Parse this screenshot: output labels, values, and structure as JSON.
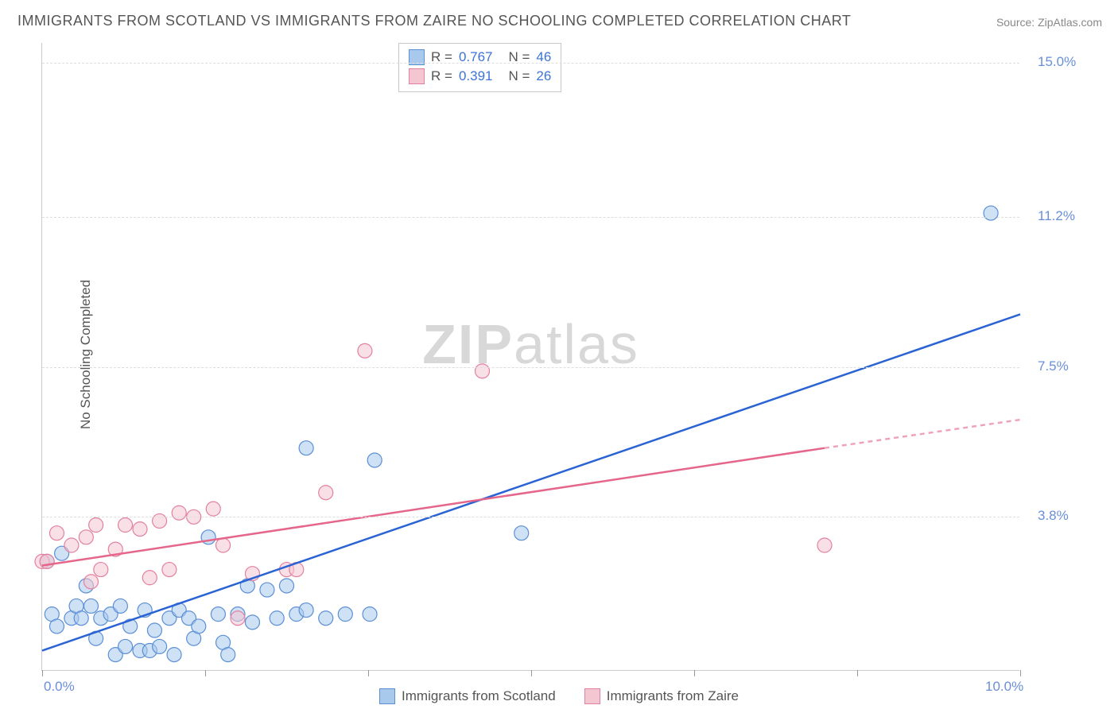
{
  "title": "IMMIGRANTS FROM SCOTLAND VS IMMIGRANTS FROM ZAIRE NO SCHOOLING COMPLETED CORRELATION CHART",
  "source": "Source: ZipAtlas.com",
  "ylabel": "No Schooling Completed",
  "watermark_a": "ZIP",
  "watermark_b": "atlas",
  "chart": {
    "type": "scatter",
    "xlim": [
      0,
      10
    ],
    "ylim": [
      0,
      15.5
    ],
    "x_ticks": [
      0.0,
      1.67,
      3.33,
      5.0,
      6.67,
      8.33,
      10.0
    ],
    "x_tick_labels": {
      "0": "0.0%",
      "6": "10.0%"
    },
    "y_gridlines": [
      3.8,
      7.5,
      11.2,
      15.0
    ],
    "y_tick_labels": [
      "3.8%",
      "7.5%",
      "11.2%",
      "15.0%"
    ],
    "grid_color": "#dddddd",
    "axis_color": "#cccccc",
    "background_color": "#ffffff",
    "tick_label_color": "#6a8fd8",
    "series": [
      {
        "name": "Immigrants from Scotland",
        "color_fill": "#a8c8ec",
        "color_stroke": "#5b8fd6",
        "marker_radius": 9,
        "fill_opacity": 0.55,
        "R": 0.767,
        "N": 46,
        "regression": {
          "x1": 0.0,
          "y1": 0.5,
          "x2": 10.0,
          "y2": 8.8,
          "color": "#2a63d4",
          "width": 2.5
        },
        "points": [
          [
            0.05,
            2.7
          ],
          [
            0.1,
            1.4
          ],
          [
            0.15,
            1.1
          ],
          [
            0.2,
            2.9
          ],
          [
            0.3,
            1.3
          ],
          [
            0.35,
            1.6
          ],
          [
            0.4,
            1.3
          ],
          [
            0.45,
            2.1
          ],
          [
            0.5,
            1.6
          ],
          [
            0.55,
            0.8
          ],
          [
            0.6,
            1.3
          ],
          [
            0.7,
            1.4
          ],
          [
            0.75,
            0.4
          ],
          [
            0.8,
            1.6
          ],
          [
            0.85,
            0.6
          ],
          [
            0.9,
            1.1
          ],
          [
            1.0,
            0.5
          ],
          [
            1.05,
            1.5
          ],
          [
            1.1,
            0.5
          ],
          [
            1.15,
            1.0
          ],
          [
            1.2,
            0.6
          ],
          [
            1.3,
            1.3
          ],
          [
            1.35,
            0.4
          ],
          [
            1.4,
            1.5
          ],
          [
            1.5,
            1.3
          ],
          [
            1.55,
            0.8
          ],
          [
            1.6,
            1.1
          ],
          [
            1.7,
            3.3
          ],
          [
            1.8,
            1.4
          ],
          [
            1.85,
            0.7
          ],
          [
            1.9,
            0.4
          ],
          [
            2.0,
            1.4
          ],
          [
            2.1,
            2.1
          ],
          [
            2.15,
            1.2
          ],
          [
            2.3,
            2.0
          ],
          [
            2.4,
            1.3
          ],
          [
            2.5,
            2.1
          ],
          [
            2.6,
            1.4
          ],
          [
            2.7,
            1.5
          ],
          [
            2.7,
            5.5
          ],
          [
            2.9,
            1.3
          ],
          [
            3.1,
            1.4
          ],
          [
            3.35,
            1.4
          ],
          [
            3.4,
            5.2
          ],
          [
            4.9,
            3.4
          ],
          [
            9.7,
            11.3
          ]
        ]
      },
      {
        "name": "Immigrants from Zaire",
        "color_fill": "#f4c6d2",
        "color_stroke": "#e3809f",
        "marker_radius": 9,
        "fill_opacity": 0.55,
        "R": 0.391,
        "N": 26,
        "regression": {
          "x1": 0.0,
          "y1": 2.6,
          "x2": 8.0,
          "y2": 5.5,
          "color": "#e5668a",
          "width": 2.5,
          "dash_from_x": 8.0,
          "dash_to_x": 10.0,
          "dash_to_y": 6.2
        },
        "points": [
          [
            0.0,
            2.7
          ],
          [
            0.05,
            2.7
          ],
          [
            0.15,
            3.4
          ],
          [
            0.3,
            3.1
          ],
          [
            0.45,
            3.3
          ],
          [
            0.5,
            2.2
          ],
          [
            0.55,
            3.6
          ],
          [
            0.6,
            2.5
          ],
          [
            0.75,
            3.0
          ],
          [
            0.85,
            3.6
          ],
          [
            1.0,
            3.5
          ],
          [
            1.1,
            2.3
          ],
          [
            1.2,
            3.7
          ],
          [
            1.3,
            2.5
          ],
          [
            1.4,
            3.9
          ],
          [
            1.55,
            3.8
          ],
          [
            1.75,
            4.0
          ],
          [
            1.85,
            3.1
          ],
          [
            2.0,
            1.3
          ],
          [
            2.15,
            2.4
          ],
          [
            2.5,
            2.5
          ],
          [
            2.6,
            2.5
          ],
          [
            2.9,
            4.4
          ],
          [
            3.3,
            7.9
          ],
          [
            4.5,
            7.4
          ],
          [
            8.0,
            3.1
          ]
        ]
      }
    ],
    "legend": [
      {
        "label": "Immigrants from Scotland",
        "fill": "#a8c8ec",
        "stroke": "#5b8fd6"
      },
      {
        "label": "Immigrants from Zaire",
        "fill": "#f4c6d2",
        "stroke": "#e3809f"
      }
    ]
  }
}
